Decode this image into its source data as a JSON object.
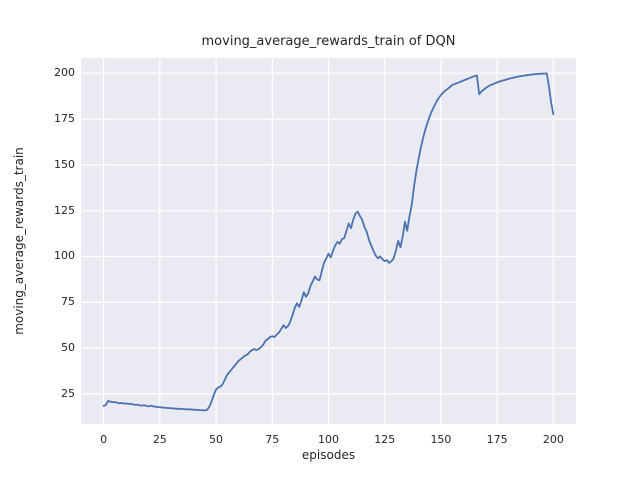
{
  "figure": {
    "background": "#ffffff"
  },
  "chart_data": {
    "type": "line",
    "title": "moving_average_rewards_train of DQN",
    "xlabel": "episodes",
    "ylabel": "moving_average_rewards_train",
    "x_ticks": [
      0,
      25,
      50,
      75,
      100,
      125,
      150,
      175,
      200
    ],
    "y_ticks": [
      25,
      50,
      75,
      100,
      125,
      150,
      175,
      200
    ],
    "xlim": [
      -10.05,
      210.05
    ],
    "ylim": [
      8.6,
      208.3
    ],
    "grid": true,
    "legend_position": "none",
    "style": {
      "plot_bg": "#eaeaf2",
      "grid_color": "#ffffff",
      "line_color": "#4c72b0",
      "text_color": "#262626",
      "line_width": 1.8
    },
    "series": [
      {
        "name": "moving_average_rewards_train",
        "x_start": 0,
        "x_step": 1,
        "values": [
          18.5,
          19.0,
          21.2,
          20.8,
          20.5,
          20.6,
          20.2,
          19.9,
          20.1,
          19.7,
          19.9,
          19.5,
          19.7,
          19.3,
          19.0,
          19.2,
          18.8,
          18.6,
          18.9,
          18.4,
          18.2,
          18.6,
          18.3,
          18.0,
          17.9,
          17.8,
          17.6,
          17.5,
          17.4,
          17.3,
          17.2,
          17.1,
          17.0,
          16.9,
          16.9,
          16.8,
          16.7,
          16.6,
          16.6,
          16.5,
          16.4,
          16.3,
          16.3,
          16.2,
          16.1,
          16.0,
          16.3,
          18.0,
          21.0,
          24.5,
          27.5,
          28.5,
          29.0,
          30.5,
          33.0,
          35.5,
          37.0,
          38.5,
          40.0,
          41.5,
          43.0,
          44.0,
          45.0,
          46.0,
          46.5,
          48.0,
          49.0,
          49.5,
          49.0,
          49.5,
          50.5,
          52.0,
          54.0,
          55.0,
          56.0,
          56.5,
          56.0,
          57.5,
          58.5,
          60.5,
          62.5,
          61.0,
          62.0,
          64.5,
          68.0,
          72.0,
          74.5,
          72.5,
          76.0,
          80.5,
          78.0,
          80.0,
          84.0,
          86.5,
          89.0,
          87.5,
          87.0,
          92.0,
          96.5,
          99.0,
          101.5,
          99.5,
          103.0,
          106.0,
          108.0,
          107.0,
          109.5,
          110.0,
          114.0,
          118.0,
          115.5,
          120.0,
          123.5,
          124.5,
          122.0,
          120.0,
          116.0,
          113.5,
          109.0,
          106.0,
          103.0,
          100.5,
          99.0,
          100.0,
          98.5,
          97.5,
          98.0,
          96.5,
          97.5,
          99.0,
          103.5,
          108.5,
          105.0,
          111.0,
          119.0,
          114.0,
          122.0,
          128.0,
          138.0,
          146.0,
          153.0,
          159.0,
          164.5,
          169.0,
          173.0,
          176.5,
          179.5,
          182.0,
          184.5,
          186.5,
          188.0,
          189.5,
          190.5,
          191.5,
          192.5,
          193.5,
          194.0,
          194.5,
          195.0,
          195.5,
          196.0,
          196.5,
          197.0,
          197.5,
          198.0,
          198.5,
          198.7,
          188.5,
          190.0,
          191.0,
          192.0,
          192.8,
          193.5,
          194.0,
          194.5,
          195.0,
          195.4,
          195.8,
          196.2,
          196.5,
          196.9,
          197.2,
          197.5,
          197.8,
          198.0,
          198.3,
          198.5,
          198.7,
          198.9,
          199.1,
          199.2,
          199.4,
          199.5,
          199.6,
          199.7,
          199.8,
          199.8,
          199.9,
          193.0,
          184.0,
          177.5
        ]
      }
    ]
  }
}
